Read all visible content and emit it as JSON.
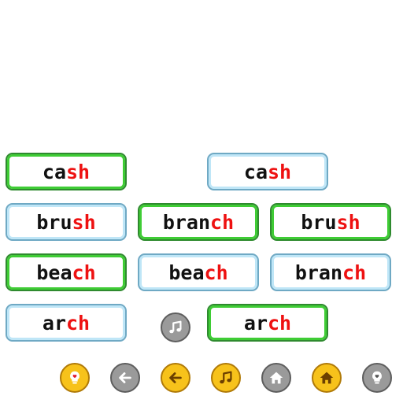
{
  "cards": [
    {
      "base": "ca",
      "hl": "sh",
      "style": "green"
    },
    {
      "base": "ca",
      "hl": "sh",
      "style": "blue"
    },
    {
      "base": "bru",
      "hl": "sh",
      "style": "blue"
    },
    {
      "base": "bran",
      "hl": "ch",
      "style": "green"
    },
    {
      "base": "bru",
      "hl": "sh",
      "style": "green"
    },
    {
      "base": "bea",
      "hl": "ch",
      "style": "green"
    },
    {
      "base": "bea",
      "hl": "ch",
      "style": "blue"
    },
    {
      "base": "bran",
      "hl": "ch",
      "style": "blue"
    },
    {
      "base": "ar",
      "hl": "ch",
      "style": "blue"
    },
    {
      "base": "ar",
      "hl": "ch",
      "style": "green"
    }
  ],
  "colors": {
    "highlight": "#ee1111",
    "text": "#111111",
    "matched_border": "#3fcc35",
    "unmatched_border": "#bfe6f7",
    "active_button": "#f7c21b",
    "inactive_button": "#9a9a9a"
  },
  "center_button": {
    "icon": "music-note-icon",
    "state": "inactive"
  },
  "toolbar": [
    {
      "icon": "lightbulb-heart-icon",
      "state": "active"
    },
    {
      "icon": "arrow-left-icon",
      "state": "inactive"
    },
    {
      "icon": "arrow-left-icon",
      "state": "active"
    },
    {
      "icon": "music-note-icon",
      "state": "active"
    },
    {
      "icon": "home-icon",
      "state": "inactive"
    },
    {
      "icon": "home-icon",
      "state": "active"
    },
    {
      "icon": "lightbulb-heart-icon",
      "state": "inactive"
    }
  ]
}
